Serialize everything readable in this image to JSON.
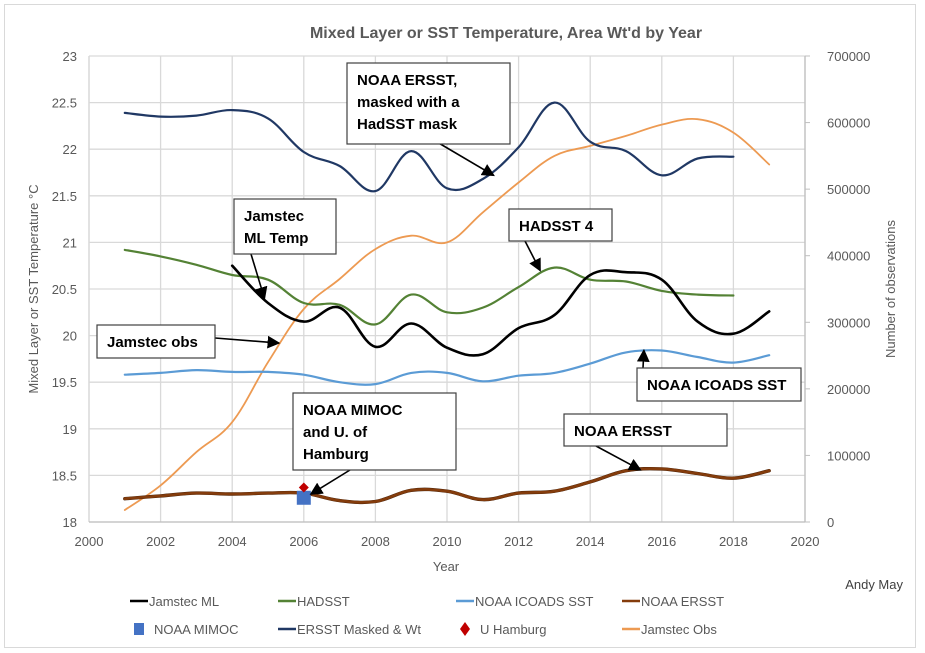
{
  "chart_data": {
    "type": "line",
    "title": "Mixed Layer or SST Temperature, Area Wt'd by Year",
    "xlabel": "Year",
    "ylabel": "Mixed Layer or SST Temperature °C",
    "y2label": "Number of observations",
    "xlim": [
      2000,
      2020
    ],
    "ylim": [
      18,
      23
    ],
    "y2lim": [
      0,
      700000
    ],
    "xticks": [
      "2000",
      "2002",
      "2004",
      "2006",
      "2008",
      "2010",
      "2012",
      "2014",
      "2016",
      "2018",
      "2020"
    ],
    "yticks": [
      "18",
      "18.5",
      "19",
      "19.5",
      "20",
      "20.5",
      "21",
      "21.5",
      "22",
      "22.5",
      "23"
    ],
    "y2ticks": [
      "0",
      "100000",
      "200000",
      "300000",
      "400000",
      "500000",
      "600000",
      "700000"
    ],
    "grid": true,
    "legend_position": "bottom",
    "credit": "Andy May",
    "series": [
      {
        "name": "Jamstec ML",
        "axis": "left",
        "color": "#000000",
        "x": [
          2004,
          2005,
          2006,
          2007,
          2008,
          2009,
          2010,
          2011,
          2012,
          2013,
          2014,
          2015,
          2016,
          2017,
          2018,
          2019
        ],
        "values": [
          20.75,
          20.35,
          20.15,
          20.3,
          19.88,
          20.13,
          19.87,
          19.8,
          20.08,
          20.22,
          20.65,
          20.68,
          20.6,
          20.15,
          20.02,
          20.26
        ]
      },
      {
        "name": "HADSST",
        "axis": "left",
        "color": "#548235",
        "x": [
          2001,
          2002,
          2003,
          2004,
          2005,
          2006,
          2007,
          2008,
          2009,
          2010,
          2011,
          2012,
          2013,
          2014,
          2015,
          2016,
          2017,
          2018
        ],
        "values": [
          20.92,
          20.85,
          20.76,
          20.65,
          20.6,
          20.35,
          20.33,
          20.12,
          20.44,
          20.25,
          20.3,
          20.52,
          20.73,
          20.6,
          20.58,
          20.48,
          20.44,
          20.43
        ]
      },
      {
        "name": "NOAA ICOADS SST",
        "axis": "left",
        "color": "#5b9bd5",
        "x": [
          2001,
          2002,
          2003,
          2004,
          2005,
          2006,
          2007,
          2008,
          2009,
          2010,
          2011,
          2012,
          2013,
          2014,
          2015,
          2016,
          2017,
          2018,
          2019
        ],
        "values": [
          19.58,
          19.6,
          19.63,
          19.61,
          19.61,
          19.58,
          19.5,
          19.48,
          19.6,
          19.6,
          19.51,
          19.57,
          19.6,
          19.7,
          19.82,
          19.84,
          19.77,
          19.71,
          19.79
        ]
      },
      {
        "name": "NOAA ERSST",
        "axis": "left",
        "color": "#843c0c",
        "x": [
          2001,
          2002,
          2003,
          2004,
          2005,
          2006,
          2007,
          2008,
          2009,
          2010,
          2011,
          2012,
          2013,
          2014,
          2015,
          2016,
          2017,
          2018,
          2019
        ],
        "values": [
          18.25,
          18.28,
          18.31,
          18.3,
          18.31,
          18.31,
          18.23,
          18.22,
          18.34,
          18.33,
          18.24,
          18.31,
          18.33,
          18.43,
          18.55,
          18.57,
          18.52,
          18.47,
          18.55
        ]
      },
      {
        "name": "ERSST Masked & Wt",
        "axis": "left",
        "color": "#203864",
        "x": [
          2001,
          2002,
          2003,
          2004,
          2005,
          2006,
          2007,
          2008,
          2009,
          2010,
          2011,
          2012,
          2013,
          2014,
          2015,
          2016,
          2017,
          2018
        ],
        "values": [
          22.39,
          22.35,
          22.36,
          22.42,
          22.33,
          21.97,
          21.82,
          21.55,
          21.98,
          21.58,
          21.68,
          22.02,
          22.5,
          22.08,
          21.98,
          21.72,
          21.9,
          21.92
        ]
      },
      {
        "name": "Jamstec Obs",
        "axis": "right",
        "color": "#ed9a52",
        "x": [
          2001,
          2002,
          2003,
          2004,
          2005,
          2006,
          2007,
          2008,
          2009,
          2010,
          2011,
          2012,
          2013,
          2014,
          2015,
          2016,
          2017,
          2018,
          2019
        ],
        "values": [
          18000,
          55000,
          105000,
          150000,
          240000,
          320000,
          365000,
          410000,
          430000,
          420000,
          465000,
          510000,
          550000,
          565000,
          580000,
          597000,
          605000,
          585000,
          537000
        ]
      },
      {
        "name": "NOAA MIMOC",
        "axis": "left",
        "color": "#4472c4",
        "marker": "square",
        "x": [
          2006
        ],
        "values": [
          18.26
        ]
      },
      {
        "name": "U Hamburg",
        "axis": "left",
        "color": "#c00000",
        "marker": "diamond",
        "x": [
          2006
        ],
        "values": [
          18.37
        ]
      }
    ],
    "legend": [
      {
        "name": "Jamstec ML",
        "symbol": "line",
        "color": "#000000"
      },
      {
        "name": "HADSST",
        "symbol": "line",
        "color": "#548235"
      },
      {
        "name": "NOAA ICOADS SST",
        "symbol": "line",
        "color": "#5b9bd5"
      },
      {
        "name": "NOAA ERSST",
        "symbol": "line",
        "color": "#843c0c"
      },
      {
        "name": "NOAA MIMOC",
        "symbol": "square",
        "color": "#4472c4"
      },
      {
        "name": "ERSST Masked & Wt",
        "symbol": "line",
        "color": "#203864"
      },
      {
        "name": "U Hamburg",
        "symbol": "diamond",
        "color": "#c00000"
      },
      {
        "name": "Jamstec Obs",
        "symbol": "line",
        "color": "#ed9a52"
      }
    ],
    "annotations": [
      {
        "id": "ersst-masked",
        "lines": [
          "NOAA ERSST,",
          "masked with a",
          "HadSST mask"
        ],
        "target_x": 2011.3,
        "target_y": 21.72
      },
      {
        "id": "jamstec-ml",
        "lines": [
          "Jamstec",
          "ML Temp"
        ],
        "target_x": 2004.9,
        "target_y": 20.4
      },
      {
        "id": "hadsst4",
        "lines": [
          "HADSST 4"
        ],
        "target_x": 2012.6,
        "target_y": 20.7
      },
      {
        "id": "jamstec-obs",
        "lines": [
          "Jamstec obs"
        ],
        "target_x": 2005.3,
        "target_y": 19.92
      },
      {
        "id": "icoads",
        "lines": [
          "NOAA ICOADS SST"
        ],
        "target_x": 2015.5,
        "target_y": 19.84
      },
      {
        "id": "mimoc-hamburg",
        "lines": [
          "NOAA MIMOC",
          "and U. of",
          "Hamburg"
        ],
        "target_x": 2006.2,
        "target_y": 18.3
      },
      {
        "id": "ersst",
        "lines": [
          "NOAA ERSST"
        ],
        "target_x": 2015.4,
        "target_y": 18.56
      }
    ]
  }
}
